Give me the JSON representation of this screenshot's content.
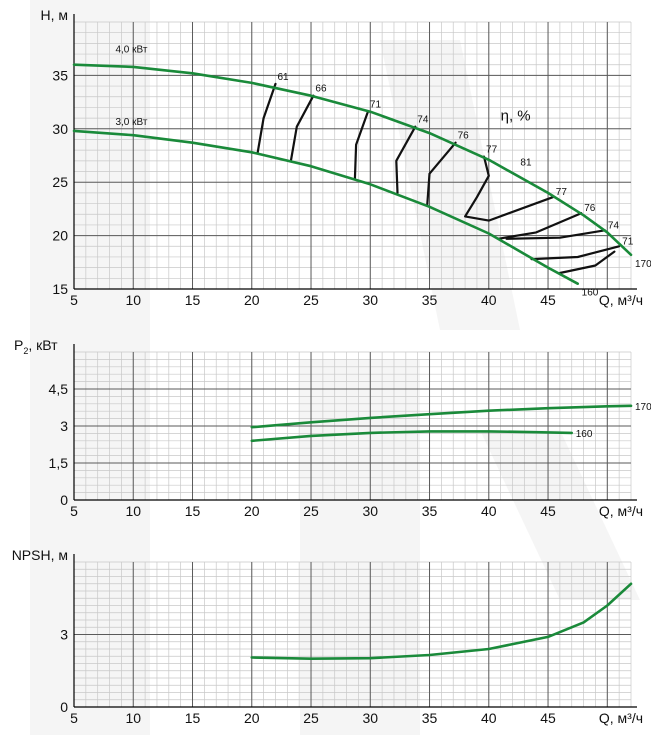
{
  "colors": {
    "curve": "#1a8a3a",
    "efficiency": "#111111",
    "grid_minor": "#c8c8c8",
    "grid_major": "#5a5a5a",
    "watermark": "#ececec"
  },
  "chart_data": [
    {
      "id": "head",
      "type": "line",
      "ylabel": "H, м",
      "xlabel": "Q, м³/ч",
      "xlim": [
        5,
        52
      ],
      "ylim": [
        15,
        40
      ],
      "x_ticks": [
        "5",
        "10",
        "15",
        "20",
        "25",
        "30",
        "35",
        "40",
        "45"
      ],
      "y_ticks": [
        "15",
        "20",
        "25",
        "30",
        "35"
      ],
      "y_tick_values": [
        15,
        20,
        25,
        30,
        35
      ],
      "series": [
        {
          "name": "170",
          "label": "170",
          "power_label": "4,0 кВт",
          "x": [
            5,
            10,
            15,
            20,
            25,
            30,
            35,
            40,
            45,
            48,
            50,
            52
          ],
          "y": [
            36,
            35.8,
            35.2,
            34.3,
            33.1,
            31.6,
            29.6,
            27.1,
            24,
            21.9,
            20.3,
            18.2
          ]
        },
        {
          "name": "160",
          "label": "160",
          "power_label": "3,0 кВт",
          "x": [
            5,
            10,
            15,
            20,
            25,
            30,
            35,
            40,
            45,
            47.5
          ],
          "y": [
            29.8,
            29.4,
            28.7,
            27.8,
            26.5,
            24.8,
            22.7,
            20.2,
            17,
            15.5
          ]
        }
      ],
      "efficiency_title": "η, %",
      "efficiency_labels_top": [
        {
          "label": "61",
          "x": 22,
          "y": 34.2
        },
        {
          "label": "66",
          "x": 25.2,
          "y": 33.1
        },
        {
          "label": "71",
          "x": 29.8,
          "y": 31.6
        },
        {
          "label": "74",
          "x": 33.8,
          "y": 30.2
        },
        {
          "label": "76",
          "x": 37.2,
          "y": 28.7
        },
        {
          "label": "77",
          "x": 39.6,
          "y": 27.4
        },
        {
          "label": "81",
          "x": 42.5,
          "y": 26.2
        }
      ],
      "efficiency_labels_right": [
        {
          "label": "77",
          "x": 45.4,
          "y": 23.6
        },
        {
          "label": "76",
          "x": 47.8,
          "y": 22.1
        },
        {
          "label": "74",
          "x": 49.8,
          "y": 20.5
        },
        {
          "label": "71",
          "x": 51,
          "y": 19
        }
      ],
      "efficiency_contours": [
        {
          "label": "61",
          "x": [
            20.5,
            21,
            22
          ],
          "y": [
            27.8,
            31,
            34.2
          ]
        },
        {
          "label": "66",
          "x": [
            23.3,
            23.8,
            25.2
          ],
          "y": [
            27,
            30.2,
            33.1
          ]
        },
        {
          "label": "71",
          "x": [
            28.7,
            28.8,
            29.8
          ],
          "y": [
            25.3,
            28.5,
            31.6
          ]
        },
        {
          "label": "74",
          "x": [
            32.3,
            32.2,
            33.8
          ],
          "y": [
            24,
            27,
            30.2
          ]
        },
        {
          "label": "76",
          "x": [
            34.8,
            35,
            37.2
          ],
          "y": [
            22.8,
            25.8,
            28.7
          ]
        },
        {
          "label": "77",
          "x": [
            45.4,
            40,
            38,
            39,
            40,
            39.6
          ],
          "y": [
            23.6,
            21.4,
            21.8,
            23.6,
            25.6,
            27.4
          ]
        },
        {
          "label": "76",
          "x": [
            40.8,
            44,
            47.8
          ],
          "y": [
            19.7,
            20.3,
            22.1
          ]
        },
        {
          "label": "74",
          "x": [
            41.5,
            46,
            49.8
          ],
          "y": [
            19.7,
            19.8,
            20.5
          ]
        },
        {
          "label": "71",
          "x": [
            43.6,
            47.5,
            51
          ],
          "y": [
            17.8,
            18,
            19
          ]
        },
        {
          "label": "71",
          "x": [
            46,
            49,
            50.6
          ],
          "y": [
            16.5,
            17.2,
            18.5
          ]
        }
      ]
    },
    {
      "id": "power",
      "type": "line",
      "ylabel": "P",
      "ylabel_sub": "2",
      "ylabel_tail": ", кВт",
      "xlabel": "Q, м³/ч",
      "xlim": [
        5,
        52
      ],
      "ylim": [
        0,
        6
      ],
      "x_ticks": [
        "5",
        "10",
        "15",
        "20",
        "25",
        "30",
        "35",
        "40",
        "45"
      ],
      "y_ticks": [
        "0",
        "1,5",
        "3",
        "4,5"
      ],
      "y_tick_values": [
        0,
        1.5,
        3,
        4.5
      ],
      "series": [
        {
          "name": "170",
          "label": "170",
          "x": [
            20,
            25,
            30,
            35,
            40,
            45,
            50,
            52
          ],
          "y": [
            2.95,
            3.15,
            3.33,
            3.48,
            3.62,
            3.72,
            3.8,
            3.82
          ]
        },
        {
          "name": "160",
          "label": "160",
          "x": [
            20,
            25,
            30,
            35,
            40,
            45,
            47
          ],
          "y": [
            2.4,
            2.6,
            2.72,
            2.78,
            2.78,
            2.74,
            2.72
          ]
        }
      ]
    },
    {
      "id": "npsh",
      "type": "line",
      "ylabel": "NPSH, м",
      "xlabel": "Q, м³/ч",
      "xlim": [
        5,
        52
      ],
      "ylim": [
        0,
        6
      ],
      "x_ticks": [
        "5",
        "10",
        "15",
        "20",
        "25",
        "30",
        "35",
        "40",
        "45"
      ],
      "y_ticks": [
        "0",
        "3"
      ],
      "y_tick_values": [
        0,
        3
      ],
      "series": [
        {
          "name": "npsh",
          "label": "",
          "x": [
            20,
            25,
            30,
            35,
            40,
            45,
            48,
            50,
            52
          ],
          "y": [
            2.05,
            2,
            2.02,
            2.15,
            2.4,
            2.9,
            3.5,
            4.2,
            5.1
          ]
        }
      ]
    }
  ]
}
